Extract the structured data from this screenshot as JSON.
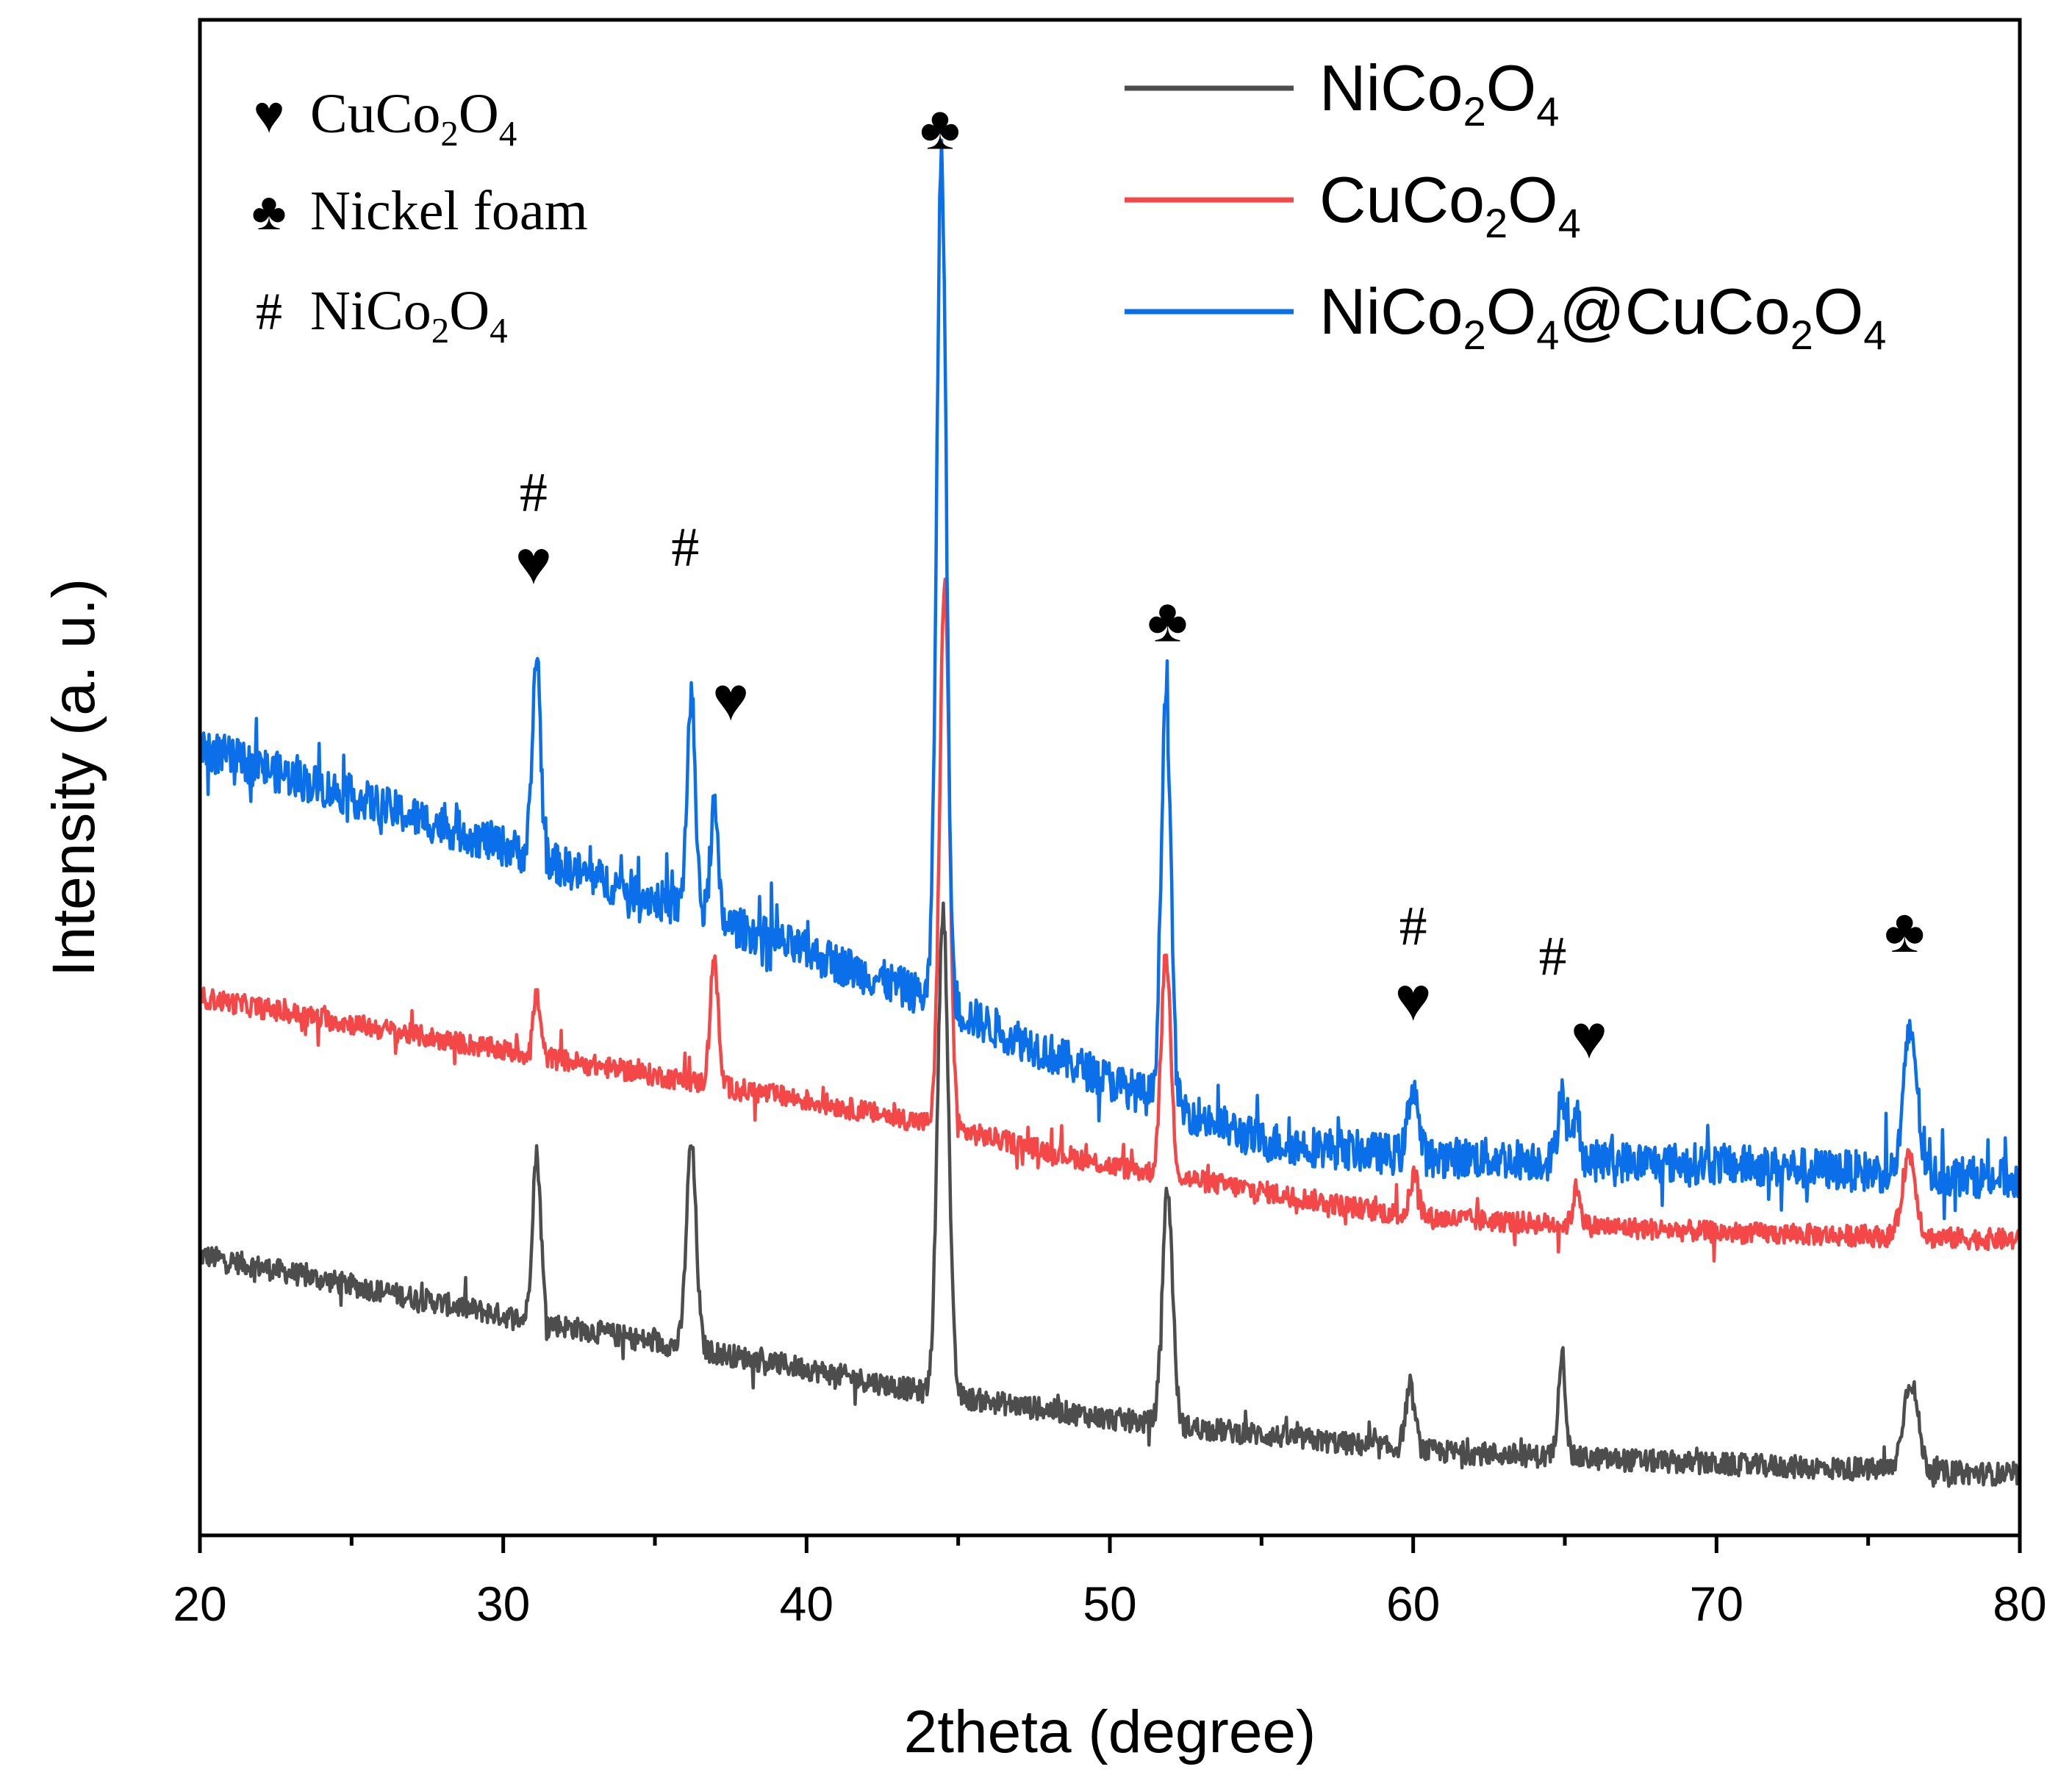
{
  "chart_data": {
    "type": "line",
    "title": "",
    "xlabel": "2theta (degree)",
    "ylabel": "Intensity (a. u.)",
    "xlim": [
      20,
      80
    ],
    "ylim": [
      0,
      100
    ],
    "y_tick_labels_shown": false,
    "x_ticks": [
      20,
      30,
      40,
      50,
      60,
      70,
      80
    ],
    "x_tick_labels": [
      "20",
      "30",
      "40",
      "50",
      "60",
      "70",
      "80"
    ],
    "legend_position": "top-right",
    "series": [
      {
        "name": "NiCo2O4",
        "legend_parts": [
          [
            "NiCo",
            ""
          ],
          [
            "2",
            "sub"
          ],
          [
            "O",
            ""
          ],
          [
            "4",
            "sub"
          ]
        ],
        "color": "#4d4d4d",
        "baseline": [
          [
            20,
            18.5
          ],
          [
            30,
            14.5
          ],
          [
            40,
            11.0
          ],
          [
            44,
            9.4
          ],
          [
            50,
            7.7
          ],
          [
            60,
            5.6
          ],
          [
            70,
            4.7
          ],
          [
            80,
            4.0
          ]
        ],
        "peaks": [
          {
            "x": 31.1,
            "h": 11,
            "w": 0.14
          },
          {
            "x": 36.2,
            "h": 13.5,
            "w": 0.16
          },
          {
            "x": 44.5,
            "h": 32,
            "w": 0.18
          },
          {
            "x": 51.9,
            "h": 15.5,
            "w": 0.17
          },
          {
            "x": 59.9,
            "h": 4,
            "w": 0.16
          },
          {
            "x": 64.9,
            "h": 7,
            "w": 0.12
          },
          {
            "x": 76.4,
            "h": 6,
            "w": 0.24
          }
        ],
        "noise": 0.75
      },
      {
        "name": "CuCo2O4",
        "legend_parts": [
          [
            "CuCo",
            ""
          ],
          [
            "2",
            "sub"
          ],
          [
            "O",
            ""
          ],
          [
            "4",
            "sub"
          ]
        ],
        "color": "#f44747",
        "baseline": [
          [
            20,
            35.5
          ],
          [
            30,
            32.0
          ],
          [
            40,
            28.7
          ],
          [
            44,
            27.2
          ],
          [
            50,
            24.4
          ],
          [
            60,
            21.0
          ],
          [
            70,
            20.0
          ],
          [
            80,
            19.5
          ]
        ],
        "peaks": [
          {
            "x": 31.1,
            "h": 4,
            "w": 0.12
          },
          {
            "x": 36.95,
            "h": 8.5,
            "w": 0.13
          },
          {
            "x": 44.55,
            "h": 36,
            "w": 0.16
          },
          {
            "x": 51.85,
            "h": 14.5,
            "w": 0.16
          },
          {
            "x": 60.05,
            "h": 2.8,
            "w": 0.15
          },
          {
            "x": 65.4,
            "h": 2.5,
            "w": 0.12
          },
          {
            "x": 76.35,
            "h": 5.5,
            "w": 0.22
          }
        ],
        "noise": 0.7
      },
      {
        "name": "NiCo2O4@CuCo2O4",
        "legend_parts": [
          [
            "NiCo",
            ""
          ],
          [
            "2",
            "sub"
          ],
          [
            "O",
            ""
          ],
          [
            "4",
            "sub"
          ],
          [
            "@CuCo",
            ""
          ],
          [
            "2",
            "sub"
          ],
          [
            "O",
            ""
          ],
          [
            "4",
            "sub"
          ]
        ],
        "color": "#0a6fe8",
        "baseline": [
          [
            20,
            52.0
          ],
          [
            30,
            45.5
          ],
          [
            40,
            38.5
          ],
          [
            44,
            35.5
          ],
          [
            50,
            30.0
          ],
          [
            55,
            26.0
          ],
          [
            60,
            25.0
          ],
          [
            70,
            24.5
          ],
          [
            80,
            23.5
          ]
        ],
        "peaks": [
          {
            "x": 31.1,
            "h": 13.5,
            "w": 0.13
          },
          {
            "x": 36.2,
            "h": 14,
            "w": 0.14
          },
          {
            "x": 36.95,
            "h": 7.5,
            "w": 0.12
          },
          {
            "x": 44.45,
            "h": 56,
            "w": 0.16
          },
          {
            "x": 51.85,
            "h": 27,
            "w": 0.16
          },
          {
            "x": 60.0,
            "h": 4.8,
            "w": 0.16
          },
          {
            "x": 64.9,
            "h": 4.8,
            "w": 0.12
          },
          {
            "x": 65.4,
            "h": 3.0,
            "w": 0.12
          },
          {
            "x": 76.4,
            "h": 9.5,
            "w": 0.22
          }
        ],
        "noise": 1.35
      }
    ],
    "annotations": [
      {
        "x": 31.0,
        "y": 67.6,
        "text": "#"
      },
      {
        "x": 31.0,
        "y": 62.8,
        "text": "♥"
      },
      {
        "x": 36.0,
        "y": 64.0,
        "text": "#"
      },
      {
        "x": 37.5,
        "y": 53.8,
        "text": "♥"
      },
      {
        "x": 44.4,
        "y": 91.5,
        "text": "♣"
      },
      {
        "x": 51.9,
        "y": 59.0,
        "text": "♣"
      },
      {
        "x": 60.0,
        "y": 39.0,
        "text": "#"
      },
      {
        "x": 60.0,
        "y": 34.0,
        "text": "♥"
      },
      {
        "x": 64.6,
        "y": 37.0,
        "text": "#"
      },
      {
        "x": 65.8,
        "y": 31.5,
        "text": "♥"
      },
      {
        "x": 76.2,
        "y": 38.5,
        "text": "♣"
      }
    ],
    "marker_key": [
      {
        "symbol": "♥",
        "parts": [
          [
            "CuCo",
            ""
          ],
          [
            "2",
            "sub"
          ],
          [
            "O",
            ""
          ],
          [
            "4",
            "sub"
          ]
        ]
      },
      {
        "symbol": "♣",
        "parts": [
          [
            "Nickel foam",
            ""
          ]
        ]
      },
      {
        "symbol": "#",
        "parts": [
          [
            "NiCo",
            ""
          ],
          [
            "2",
            "sub"
          ],
          [
            "O",
            ""
          ],
          [
            "4",
            "sub"
          ]
        ]
      }
    ]
  }
}
